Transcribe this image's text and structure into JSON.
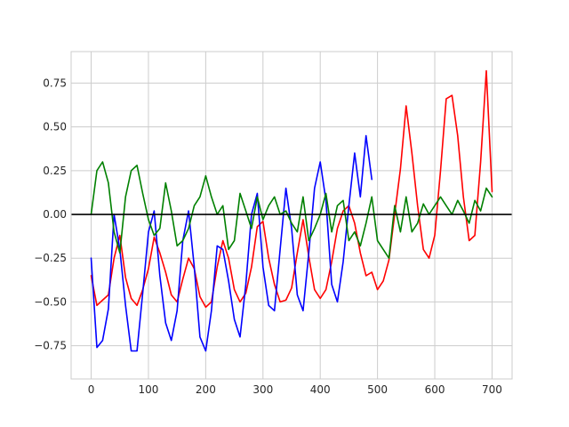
{
  "chart_data": {
    "type": "line",
    "title": "",
    "xlabel": "",
    "ylabel": "",
    "xlim": [
      -35,
      735
    ],
    "ylim": [
      -0.94,
      0.93
    ],
    "x_ticks": [
      0,
      100,
      200,
      300,
      400,
      500,
      600,
      700
    ],
    "y_ticks": [
      -0.75,
      -0.5,
      -0.25,
      0.0,
      0.25,
      0.5,
      0.75
    ],
    "x_tick_labels": [
      "0",
      "100",
      "200",
      "300",
      "400",
      "500",
      "600",
      "700"
    ],
    "y_tick_labels": [
      "−0.75",
      "−0.50",
      "−0.25",
      "0.00",
      "0.25",
      "0.50",
      "0.75"
    ],
    "grid": true,
    "legend": "none",
    "reference_line": {
      "y": 0.0,
      "color": "#000000"
    },
    "series": [
      {
        "color": "#ff0000",
        "x": [
          0,
          10,
          20,
          30,
          40,
          50,
          60,
          70,
          80,
          90,
          100,
          110,
          120,
          130,
          140,
          150,
          160,
          170,
          180,
          190,
          200,
          210,
          220,
          230,
          240,
          250,
          260,
          270,
          280,
          290,
          300,
          310,
          320,
          330,
          340,
          350,
          360,
          370,
          380,
          390,
          400,
          410,
          420,
          430,
          440,
          450,
          460,
          470,
          480,
          490,
          500,
          510,
          520,
          530,
          540,
          550,
          560,
          570,
          580,
          590,
          600,
          610,
          620,
          630,
          640,
          650,
          660,
          670,
          680,
          690,
          700
        ],
        "y": [
          -0.35,
          -0.52,
          -0.49,
          -0.46,
          -0.25,
          -0.12,
          -0.36,
          -0.48,
          -0.52,
          -0.43,
          -0.31,
          -0.13,
          -0.22,
          -0.33,
          -0.46,
          -0.5,
          -0.37,
          -0.25,
          -0.31,
          -0.47,
          -0.53,
          -0.5,
          -0.3,
          -0.15,
          -0.25,
          -0.43,
          -0.5,
          -0.45,
          -0.3,
          -0.07,
          -0.04,
          -0.25,
          -0.4,
          -0.5,
          -0.49,
          -0.42,
          -0.22,
          -0.03,
          -0.24,
          -0.43,
          -0.48,
          -0.43,
          -0.27,
          -0.08,
          0.02,
          0.05,
          -0.05,
          -0.22,
          -0.35,
          -0.33,
          -0.43,
          -0.38,
          -0.26,
          0.0,
          0.26,
          0.62,
          0.35,
          0.05,
          -0.2,
          -0.25,
          -0.12,
          0.25,
          0.66,
          0.68,
          0.45,
          0.1,
          -0.15,
          -0.12,
          0.3,
          0.82,
          0.13
        ]
      },
      {
        "color": "#0000ff",
        "x": [
          0,
          10,
          20,
          30,
          40,
          50,
          60,
          70,
          80,
          90,
          100,
          110,
          120,
          130,
          140,
          150,
          160,
          170,
          180,
          190,
          200,
          210,
          220,
          230,
          240,
          250,
          260,
          270,
          280,
          290,
          300,
          310,
          320,
          330,
          340,
          350,
          360,
          370,
          380,
          390,
          400,
          410,
          420,
          430,
          440,
          450,
          460,
          470,
          480,
          490
        ],
        "y": [
          -0.25,
          -0.76,
          -0.72,
          -0.54,
          0.0,
          -0.2,
          -0.52,
          -0.78,
          -0.78,
          -0.45,
          -0.1,
          0.02,
          -0.35,
          -0.62,
          -0.72,
          -0.55,
          -0.15,
          0.02,
          -0.3,
          -0.7,
          -0.78,
          -0.55,
          -0.18,
          -0.2,
          -0.38,
          -0.6,
          -0.7,
          -0.4,
          0.0,
          0.12,
          -0.3,
          -0.52,
          -0.55,
          -0.2,
          0.15,
          -0.08,
          -0.46,
          -0.55,
          -0.22,
          0.15,
          0.3,
          0.08,
          -0.4,
          -0.5,
          -0.27,
          0.05,
          0.35,
          0.1,
          0.45,
          0.2
        ]
      },
      {
        "color": "#008000",
        "x": [
          0,
          10,
          20,
          30,
          40,
          50,
          60,
          70,
          80,
          90,
          100,
          110,
          120,
          130,
          140,
          150,
          160,
          170,
          180,
          190,
          200,
          210,
          220,
          230,
          240,
          250,
          260,
          270,
          280,
          290,
          300,
          310,
          320,
          330,
          340,
          350,
          360,
          370,
          380,
          390,
          400,
          410,
          420,
          430,
          440,
          450,
          460,
          470,
          480,
          490,
          500,
          510,
          520,
          530,
          540,
          550,
          560,
          570,
          580,
          590,
          600,
          610,
          620,
          630,
          640,
          650,
          660,
          670,
          680,
          690,
          700
        ],
        "y": [
          0.0,
          0.25,
          0.3,
          0.18,
          -0.1,
          -0.22,
          0.1,
          0.25,
          0.28,
          0.12,
          -0.03,
          -0.12,
          -0.08,
          0.18,
          0.02,
          -0.18,
          -0.15,
          -0.08,
          0.05,
          0.1,
          0.22,
          0.1,
          0.0,
          0.05,
          -0.2,
          -0.15,
          0.12,
          0.02,
          -0.08,
          0.1,
          -0.03,
          0.05,
          0.1,
          0.0,
          0.02,
          -0.05,
          -0.1,
          0.1,
          -0.15,
          -0.08,
          0.0,
          0.12,
          -0.1,
          0.05,
          0.08,
          -0.15,
          -0.1,
          -0.18,
          -0.05,
          0.1,
          -0.15,
          -0.2,
          -0.25,
          0.05,
          -0.1,
          0.1,
          -0.1,
          -0.05,
          0.06,
          0.0,
          0.05,
          0.1,
          0.05,
          0.0,
          0.08,
          0.02,
          -0.05,
          0.08,
          0.02,
          0.15,
          0.1
        ]
      }
    ]
  }
}
